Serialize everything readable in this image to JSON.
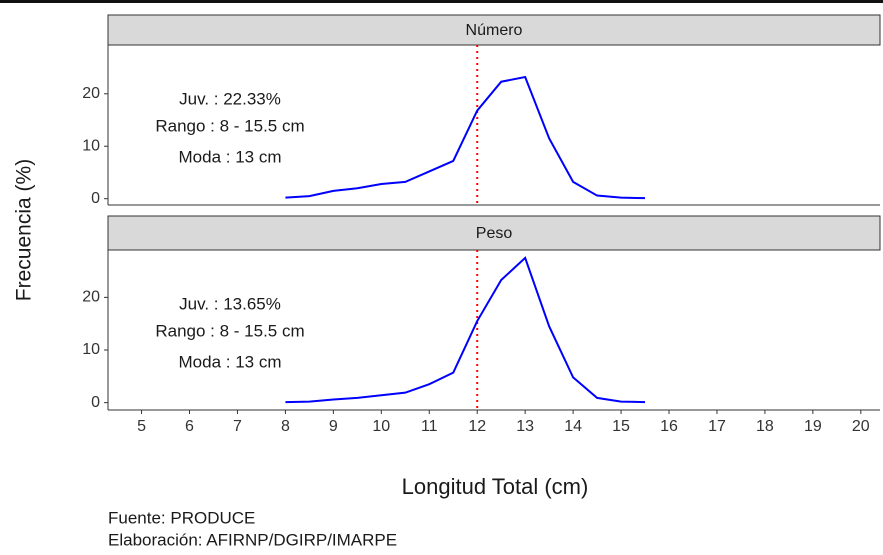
{
  "figure": {
    "ylabel": "Frecuencia (%)",
    "xlabel": "Longitud Total (cm)",
    "caption": [
      "Fuente: PRODUCE",
      "Elaboración: AFIRNP/DGIRP/IMARPE"
    ]
  },
  "chart_data": [
    {
      "type": "line",
      "facet": "Número",
      "x": [
        8,
        8.5,
        9,
        9.5,
        10,
        10.5,
        11,
        11.5,
        12,
        12.5,
        13,
        13.5,
        14,
        14.5,
        15,
        15.5
      ],
      "series": [
        {
          "color": "#0000ff",
          "values": [
            0.2,
            0.5,
            1.5,
            2.0,
            2.8,
            3.2,
            5.2,
            7.2,
            16.8,
            22.3,
            23.2,
            11.5,
            3.2,
            0.6,
            0.2,
            0.1
          ]
        }
      ],
      "reference_x": 12,
      "reference_color": "#ff0000",
      "annotations": [
        "Juv. : 22.33%",
        "Rango : 8 - 15.5 cm",
        "Moda : 13 cm"
      ],
      "xlim": [
        4.3,
        20.4
      ],
      "ylim": [
        -1.2,
        29.3
      ],
      "yticks": [
        0,
        10,
        20
      ]
    },
    {
      "type": "line",
      "facet": "Peso",
      "x": [
        8,
        8.5,
        9,
        9.5,
        10,
        10.5,
        11,
        11.5,
        12,
        12.5,
        13,
        13.5,
        14,
        14.5,
        15,
        15.5
      ],
      "series": [
        {
          "color": "#0000ff",
          "values": [
            0.1,
            0.2,
            0.6,
            0.9,
            1.4,
            1.9,
            3.5,
            5.7,
            15.5,
            23.3,
            27.5,
            14.5,
            4.8,
            0.9,
            0.2,
            0.1
          ]
        }
      ],
      "reference_x": 12,
      "reference_color": "#ff0000",
      "annotations": [
        "Juv. : 13.65%",
        "Rango : 8 - 15.5 cm",
        "Moda : 13 cm"
      ],
      "xlim": [
        4.3,
        20.4
      ],
      "ylim": [
        -1.4,
        29
      ],
      "yticks": [
        0,
        10,
        20
      ],
      "xticks": [
        5,
        6,
        7,
        8,
        9,
        10,
        11,
        12,
        13,
        14,
        15,
        16,
        17,
        18,
        19,
        20
      ]
    }
  ]
}
